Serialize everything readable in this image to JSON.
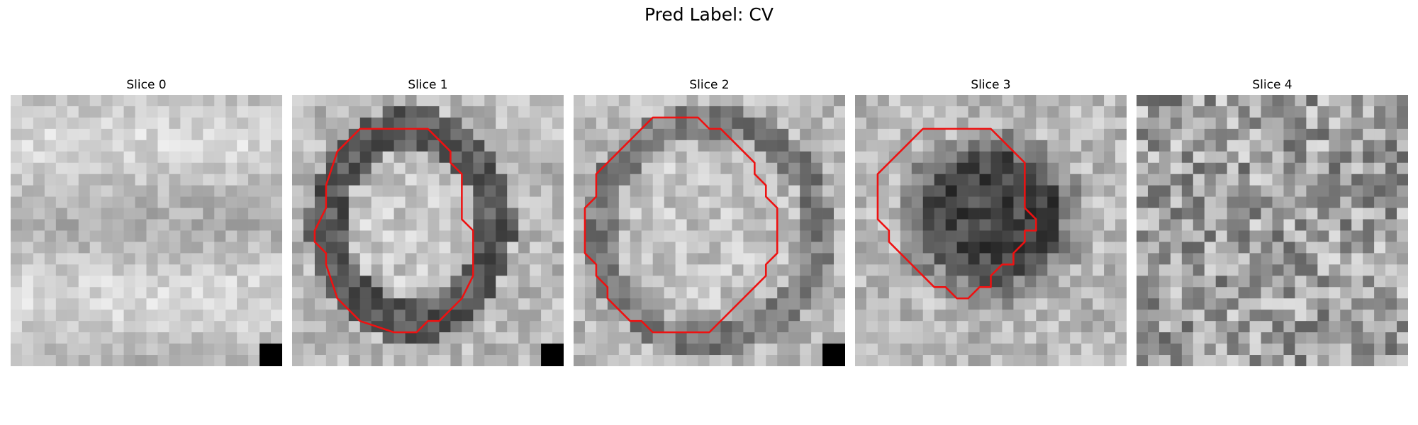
{
  "figure": {
    "title": "Pred Label: CV"
  },
  "panels": [
    {
      "title": "Slice 0",
      "seed": 11,
      "outline": null,
      "corner_block": true,
      "style": "bands"
    },
    {
      "title": "Slice 1",
      "seed": 23,
      "outline": [
        [
          10,
          3
        ],
        [
          6,
          3
        ],
        [
          4,
          5
        ],
        [
          3,
          8
        ],
        [
          3,
          10
        ],
        [
          2,
          12
        ],
        [
          2,
          13
        ],
        [
          3,
          14
        ],
        [
          3,
          15
        ],
        [
          4,
          18
        ],
        [
          5,
          19
        ],
        [
          6,
          20
        ],
        [
          9,
          21
        ],
        [
          11,
          21
        ],
        [
          12,
          20
        ],
        [
          13,
          20
        ],
        [
          14,
          19
        ],
        [
          15,
          18
        ],
        [
          16,
          16
        ],
        [
          16,
          12
        ],
        [
          15,
          11
        ],
        [
          15,
          7
        ],
        [
          14,
          6
        ],
        [
          14,
          5
        ],
        [
          13,
          4
        ],
        [
          12,
          3
        ],
        [
          11,
          3
        ]
      ],
      "corner_block": true,
      "style": "ring"
    },
    {
      "title": "Slice 2",
      "seed": 37,
      "outline": [
        [
          7,
          2
        ],
        [
          11,
          2
        ],
        [
          12,
          3
        ],
        [
          13,
          3
        ],
        [
          14,
          4
        ],
        [
          15,
          5
        ],
        [
          16,
          6
        ],
        [
          16,
          7
        ],
        [
          17,
          8
        ],
        [
          17,
          9
        ],
        [
          18,
          10
        ],
        [
          18,
          14
        ],
        [
          17,
          15
        ],
        [
          17,
          16
        ],
        [
          16,
          17
        ],
        [
          15,
          18
        ],
        [
          14,
          19
        ],
        [
          13,
          20
        ],
        [
          12,
          21
        ],
        [
          7,
          21
        ],
        [
          6,
          20
        ],
        [
          5,
          20
        ],
        [
          4,
          19
        ],
        [
          3,
          18
        ],
        [
          3,
          17
        ],
        [
          2,
          16
        ],
        [
          2,
          15
        ],
        [
          1,
          14
        ],
        [
          1,
          10
        ],
        [
          2,
          9
        ],
        [
          2,
          7
        ],
        [
          3,
          6
        ],
        [
          4,
          5
        ],
        [
          5,
          4
        ],
        [
          6,
          3
        ]
      ],
      "corner_block": true,
      "style": "ring2"
    },
    {
      "title": "Slice 3",
      "seed": 53,
      "outline": [
        [
          9,
          3
        ],
        [
          12,
          3
        ],
        [
          13,
          4
        ],
        [
          14,
          5
        ],
        [
          15,
          6
        ],
        [
          15,
          10
        ],
        [
          16,
          11
        ],
        [
          16,
          12
        ],
        [
          15,
          12
        ],
        [
          15,
          13
        ],
        [
          14,
          14
        ],
        [
          14,
          15
        ],
        [
          13,
          15
        ],
        [
          12,
          16
        ],
        [
          12,
          17
        ],
        [
          11,
          17
        ],
        [
          10,
          18
        ],
        [
          9,
          18
        ],
        [
          8,
          17
        ],
        [
          7,
          17
        ],
        [
          6,
          16
        ],
        [
          5,
          15
        ],
        [
          4,
          14
        ],
        [
          3,
          13
        ],
        [
          3,
          12
        ],
        [
          2,
          11
        ],
        [
          2,
          7
        ],
        [
          3,
          6
        ],
        [
          4,
          5
        ],
        [
          5,
          4
        ],
        [
          6,
          3
        ]
      ],
      "corner_block": false,
      "style": "blob"
    },
    {
      "title": "Slice 4",
      "seed": 71,
      "outline": null,
      "corner_block": false,
      "style": "noisy"
    }
  ]
}
